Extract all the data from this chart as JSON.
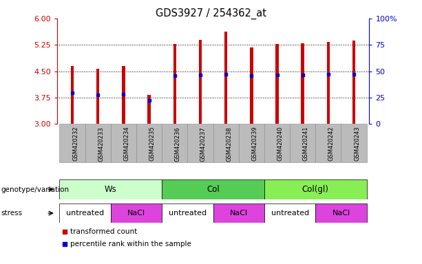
{
  "title": "GDS3927 / 254362_at",
  "samples": [
    "GSM420232",
    "GSM420233",
    "GSM420234",
    "GSM420235",
    "GSM420236",
    "GSM420237",
    "GSM420238",
    "GSM420239",
    "GSM420240",
    "GSM420241",
    "GSM420242",
    "GSM420243"
  ],
  "bar_tops": [
    4.65,
    4.58,
    4.65,
    3.82,
    5.28,
    5.4,
    5.63,
    5.18,
    5.28,
    5.3,
    5.33,
    5.37
  ],
  "blue_dots": [
    3.88,
    3.83,
    3.85,
    3.68,
    4.38,
    4.4,
    4.42,
    4.38,
    4.4,
    4.4,
    4.41,
    4.41
  ],
  "ymin": 3,
  "ymax": 6,
  "y_ticks_left": [
    3,
    3.75,
    4.5,
    5.25,
    6
  ],
  "y_ticks_right_vals": [
    0,
    25,
    50,
    75,
    100
  ],
  "y_ticks_right_labels": [
    "0",
    "25",
    "50",
    "75",
    "100%"
  ],
  "bar_color": "#cc0000",
  "dot_color": "#0000cc",
  "bar_width": 0.12,
  "genotype_groups": [
    {
      "label": "Ws",
      "start": 0,
      "end": 3,
      "color": "#ccffcc"
    },
    {
      "label": "Col",
      "start": 4,
      "end": 7,
      "color": "#55cc55"
    },
    {
      "label": "Col(gl)",
      "start": 8,
      "end": 11,
      "color": "#88ee55"
    }
  ],
  "stress_groups": [
    {
      "label": "untreated",
      "start": 0,
      "end": 1,
      "color": "#ffffff"
    },
    {
      "label": "NaCl",
      "start": 2,
      "end": 3,
      "color": "#dd44dd"
    },
    {
      "label": "untreated",
      "start": 4,
      "end": 5,
      "color": "#ffffff"
    },
    {
      "label": "NaCl",
      "start": 6,
      "end": 7,
      "color": "#dd44dd"
    },
    {
      "label": "untreated",
      "start": 8,
      "end": 9,
      "color": "#ffffff"
    },
    {
      "label": "NaCl",
      "start": 10,
      "end": 11,
      "color": "#dd44dd"
    }
  ],
  "legend_items": [
    {
      "label": "transformed count",
      "color": "#cc0000"
    },
    {
      "label": "percentile rank within the sample",
      "color": "#0000cc"
    }
  ],
  "bg_color": "#ffffff",
  "tick_bg_color": "#bbbbbb",
  "left_axis_color": "#cc0000",
  "right_axis_color": "#0000cc",
  "grid_vals": [
    3.75,
    4.5,
    5.25
  ],
  "xlim_min": -0.6,
  "xlim_max": 11.6
}
